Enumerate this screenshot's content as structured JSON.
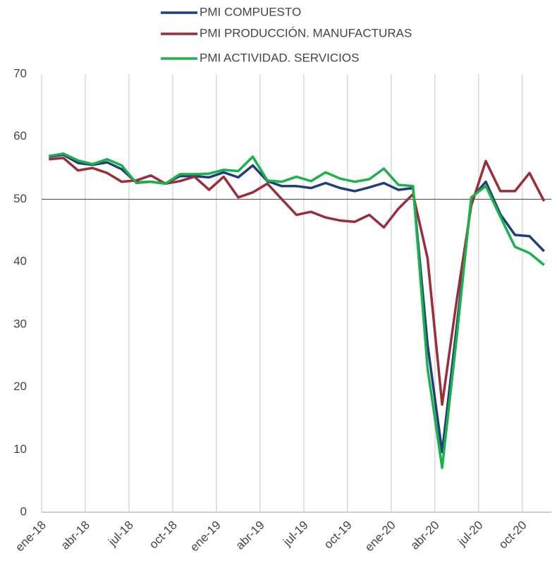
{
  "chart_data": {
    "type": "line",
    "categories": [
      "ene-18",
      null,
      null,
      "abr-18",
      null,
      null,
      "jul-18",
      null,
      null,
      "oct-18",
      null,
      null,
      "ene-19",
      null,
      null,
      "abr-19",
      null,
      null,
      "jul-19",
      null,
      null,
      "oct-19",
      null,
      null,
      "ene-20",
      null,
      null,
      "abr-20",
      null,
      null,
      "jul-20",
      null,
      null,
      "oct-20",
      null
    ],
    "series": [
      {
        "name": "PMI COMPUESTO",
        "color": "#1f3f7a",
        "values": [
          56.8,
          57.1,
          55.8,
          55.5,
          55.9,
          54.8,
          52.7,
          52.8,
          52.5,
          53.7,
          53.7,
          53.5,
          54.3,
          53.5,
          55.4,
          52.9,
          52.1,
          52.1,
          51.8,
          52.6,
          51.8,
          51.3,
          51.9,
          52.6,
          51.5,
          51.8,
          26.8,
          9.6,
          29.6,
          50.1,
          52.8,
          47.6,
          44.3,
          44.1,
          41.7
        ]
      },
      {
        "name": "PMI PRODUCCIÓN. MANUFACTURAS",
        "color": "#9b2d3a",
        "values": [
          56.4,
          56.6,
          54.6,
          55.0,
          54.2,
          52.8,
          53.0,
          53.8,
          52.5,
          52.9,
          53.6,
          51.5,
          53.6,
          50.3,
          51.1,
          52.5,
          50.0,
          47.5,
          48.0,
          47.1,
          46.6,
          46.4,
          47.5,
          45.5,
          48.5,
          50.8,
          40.6,
          17.2,
          33.8,
          49.0,
          56.1,
          51.3,
          51.3,
          54.2,
          49.7
        ]
      },
      {
        "name": "PMI ACTIVIDAD. SERVICIOS",
        "color": "#19b24b",
        "values": [
          56.9,
          57.3,
          56.2,
          55.6,
          56.4,
          55.4,
          52.6,
          52.8,
          52.5,
          54.0,
          54.0,
          54.1,
          54.7,
          54.5,
          56.8,
          53.0,
          52.8,
          53.6,
          52.9,
          54.3,
          53.3,
          52.8,
          53.2,
          54.9,
          52.3,
          52.1,
          23.0,
          7.1,
          27.9,
          50.3,
          52.1,
          47.2,
          42.4,
          41.4,
          39.5
        ]
      }
    ],
    "ylim": [
      0,
      70
    ],
    "yticks": [
      0,
      10,
      20,
      30,
      40,
      50,
      60,
      70
    ],
    "reference_line": 50,
    "grid": true
  }
}
